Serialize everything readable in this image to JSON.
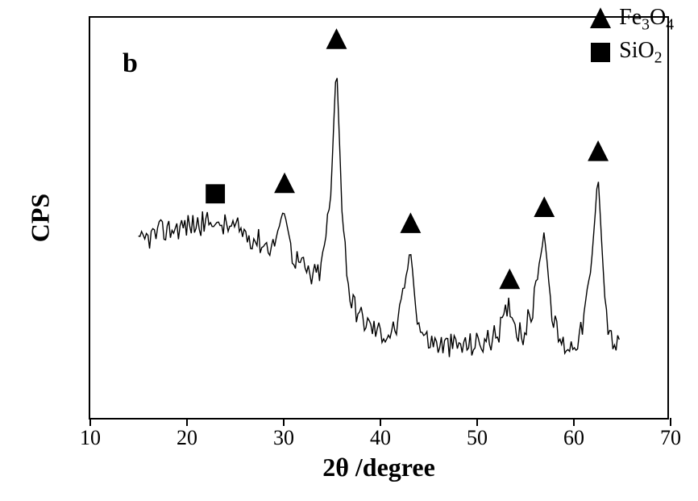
{
  "chart": {
    "type": "line",
    "panel_label": "b",
    "panel_label_fontsize": 34,
    "x_axis_label": "2θ /degree",
    "y_axis_label": "CPS",
    "axis_label_fontsize": 32,
    "tick_label_fontsize": 26,
    "xlim": [
      10,
      70
    ],
    "ylim": [
      0,
      100
    ],
    "xtick_step": 10,
    "xticks": [
      10,
      20,
      30,
      40,
      50,
      60,
      70
    ],
    "line_color": "#000000",
    "line_width": 1.4,
    "background_color": "#ffffff",
    "border_color": "#000000",
    "legend": {
      "position": "top-right",
      "fontsize": 28,
      "items": [
        {
          "marker": "triangle",
          "label_html": "Fe<sub>3</sub>O<sub>4</sub>",
          "size": 26
        },
        {
          "marker": "square",
          "label_html": "SiO<sub>2</sub>",
          "size": 24
        }
      ]
    },
    "peak_markers": [
      {
        "x": 23.0,
        "y": 56,
        "shape": "square",
        "size": 24
      },
      {
        "x": 30.2,
        "y": 58,
        "shape": "triangle",
        "size": 26
      },
      {
        "x": 35.6,
        "y": 94,
        "shape": "triangle",
        "size": 26
      },
      {
        "x": 43.3,
        "y": 48,
        "shape": "triangle",
        "size": 26
      },
      {
        "x": 53.6,
        "y": 34,
        "shape": "triangle",
        "size": 26
      },
      {
        "x": 57.2,
        "y": 52,
        "shape": "triangle",
        "size": 26
      },
      {
        "x": 62.8,
        "y": 66,
        "shape": "triangle",
        "size": 26
      }
    ],
    "baseline_points": [
      [
        15,
        43
      ],
      [
        16,
        45
      ],
      [
        17,
        46
      ],
      [
        18,
        47
      ],
      [
        19,
        47.5
      ],
      [
        20,
        48
      ],
      [
        21,
        48.4
      ],
      [
        22,
        48.6
      ],
      [
        23,
        48.5
      ],
      [
        24,
        48
      ],
      [
        25,
        47.3
      ],
      [
        26,
        46.3
      ],
      [
        27,
        45
      ],
      [
        28,
        43.5
      ],
      [
        29,
        43
      ],
      [
        30.2,
        52
      ],
      [
        31,
        41
      ],
      [
        32,
        38
      ],
      [
        33,
        35
      ],
      [
        34,
        37
      ],
      [
        35,
        55
      ],
      [
        35.6,
        90
      ],
      [
        36.2,
        50
      ],
      [
        37,
        30
      ],
      [
        38,
        25.5
      ],
      [
        39,
        23
      ],
      [
        40,
        21.5
      ],
      [
        41,
        21
      ],
      [
        42,
        23
      ],
      [
        43.3,
        42
      ],
      [
        44,
        24
      ],
      [
        45,
        19.5
      ],
      [
        46,
        18.5
      ],
      [
        47,
        18
      ],
      [
        48,
        18
      ],
      [
        49,
        18
      ],
      [
        50,
        18.5
      ],
      [
        51,
        19
      ],
      [
        52,
        20
      ],
      [
        53,
        24
      ],
      [
        53.6,
        29
      ],
      [
        54.2,
        23
      ],
      [
        55,
        21
      ],
      [
        56,
        27
      ],
      [
        57.2,
        47
      ],
      [
        58,
        25
      ],
      [
        59,
        18.5
      ],
      [
        60,
        18
      ],
      [
        61,
        21
      ],
      [
        62,
        35
      ],
      [
        62.8,
        61
      ],
      [
        63.5,
        30
      ],
      [
        64,
        20
      ],
      [
        65,
        17.5
      ]
    ],
    "noise_amplitude": 3.2,
    "noise_points_per_unit": 6
  }
}
